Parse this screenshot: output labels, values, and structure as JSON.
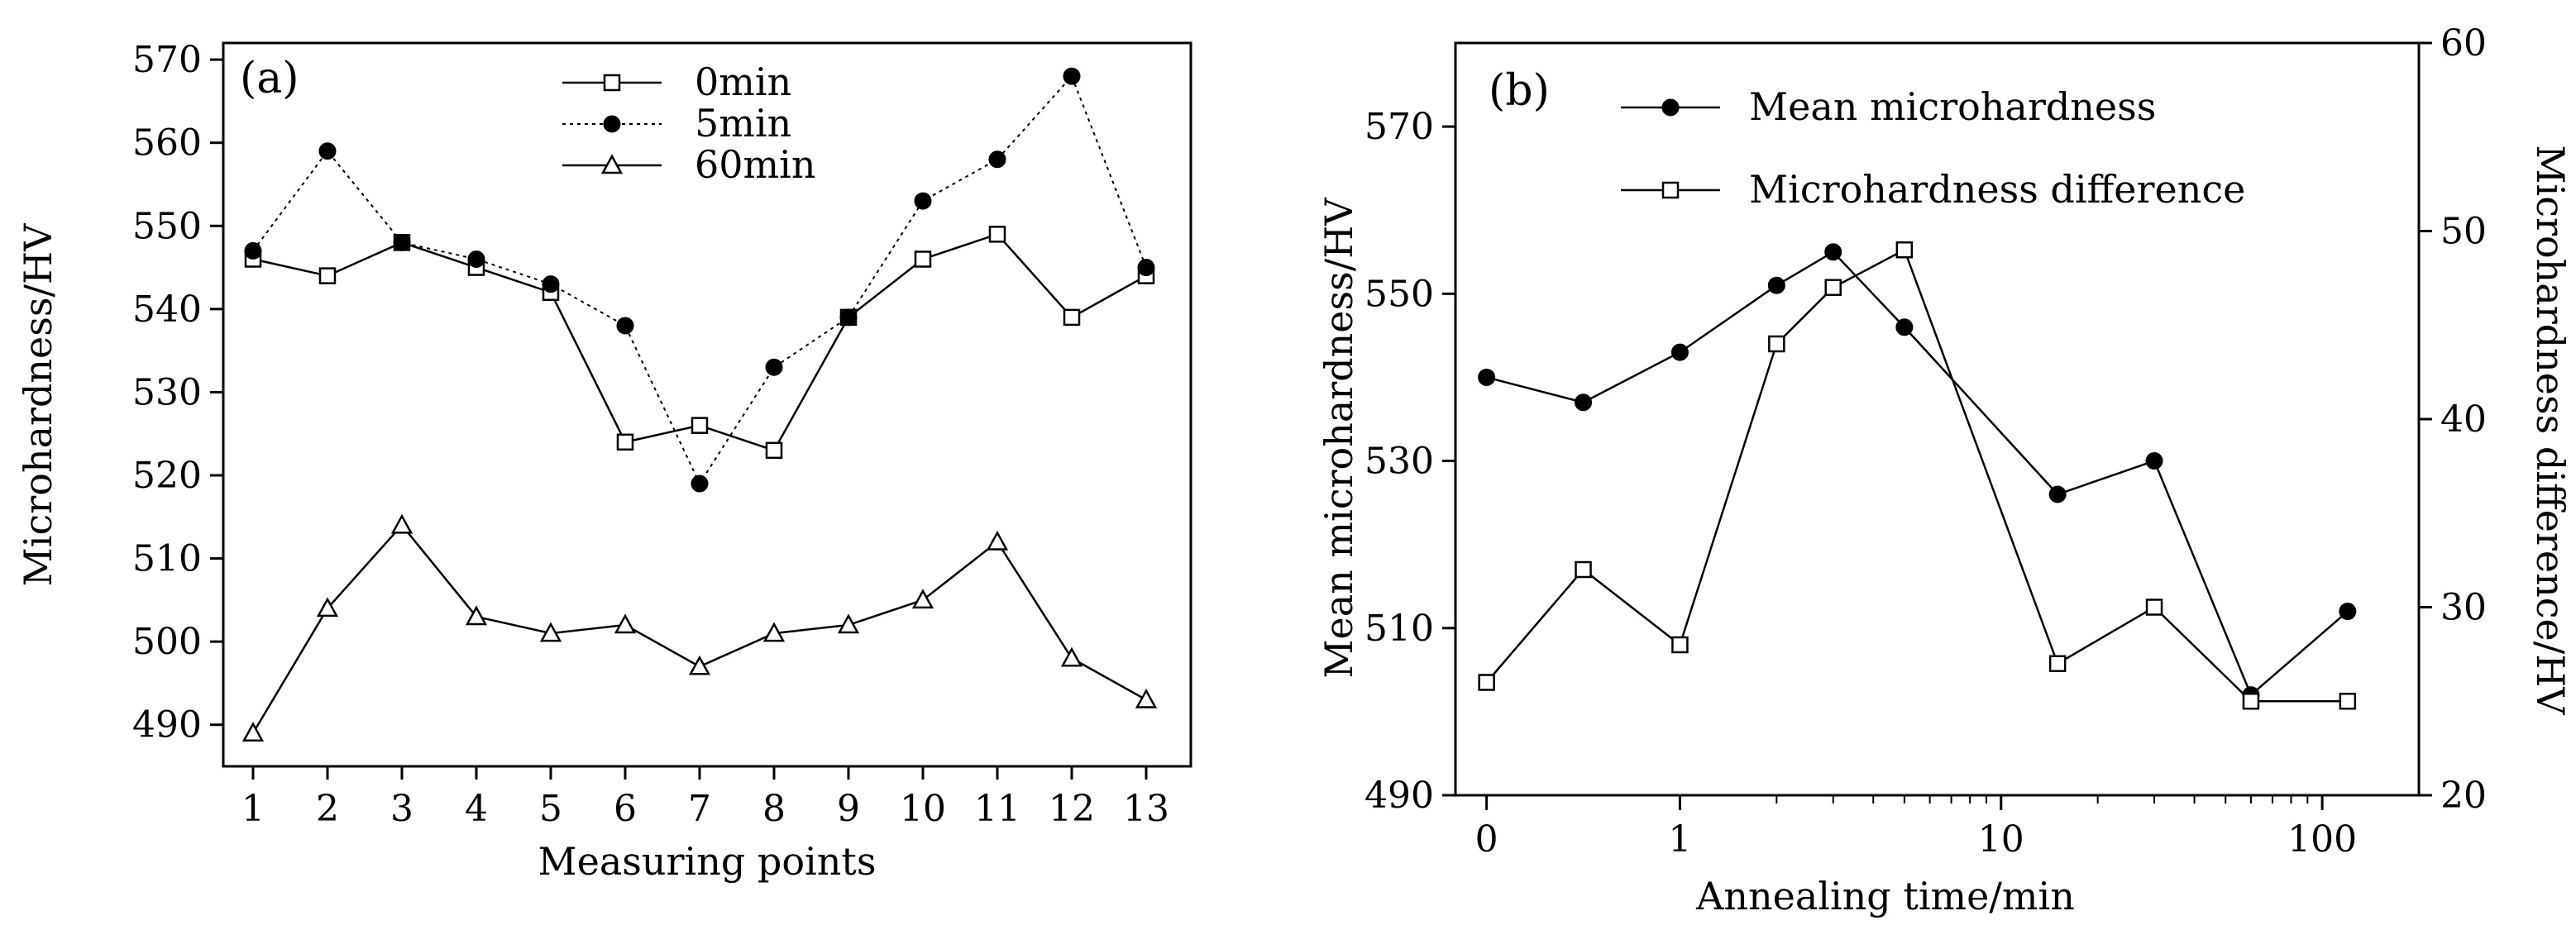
{
  "chart_data": [
    {
      "panel": "(a)",
      "type": "line",
      "xlabel": "Measuring points",
      "ylabel": "Microhardness/HV",
      "xlim": [
        0.6,
        13.6
      ],
      "ylim": [
        485,
        572
      ],
      "xticks": [
        "1",
        "2",
        "3",
        "4",
        "5",
        "6",
        "7",
        "8",
        "9",
        "10",
        "11",
        "12",
        "13"
      ],
      "yticks": [
        "490",
        "500",
        "510",
        "520",
        "530",
        "540",
        "550",
        "560",
        "570"
      ],
      "x": [
        1,
        2,
        3,
        4,
        5,
        6,
        7,
        8,
        9,
        10,
        11,
        12,
        13
      ],
      "series": [
        {
          "name": "0min",
          "marker": "open-square",
          "line": "solid",
          "values": [
            546,
            544,
            548,
            545,
            542,
            524,
            526,
            523,
            539,
            546,
            549,
            539,
            544
          ]
        },
        {
          "name": "5min",
          "marker": "filled-circle",
          "line": "dotted",
          "values": [
            547,
            559,
            548,
            546,
            543,
            538,
            519,
            533,
            539,
            553,
            558,
            568,
            545
          ]
        },
        {
          "name": "60min",
          "marker": "open-triangle",
          "line": "solid",
          "values": [
            489,
            504,
            514,
            503,
            501,
            502,
            497,
            501,
            502,
            505,
            512,
            498,
            493
          ]
        }
      ],
      "legend_position": "top-center"
    },
    {
      "panel": "(b)",
      "type": "line",
      "xlabel": "Annealing time/min",
      "ylabel_left": "Mean microhardness/HV",
      "ylabel_right": "Microhardness difference/HV",
      "xscale": "log",
      "xlim": [
        0.2,
        200
      ],
      "xticks": [
        "0",
        "1",
        "10",
        "100"
      ],
      "x_tick_values": [
        0.25,
        1,
        10,
        100
      ],
      "ylim_left": [
        490,
        580
      ],
      "yticks_left": [
        "490",
        "510",
        "530",
        "550",
        "570"
      ],
      "ylim_right": [
        20,
        60
      ],
      "yticks_right": [
        "20",
        "30",
        "40",
        "50",
        "60"
      ],
      "series": [
        {
          "name": "Mean microhardness",
          "axis": "left",
          "marker": "filled-circle",
          "x": [
            0.25,
            0.5,
            1,
            2,
            3,
            5,
            15,
            30,
            60,
            120
          ],
          "values": [
            540,
            537,
            543,
            551,
            555,
            546,
            526,
            530,
            502,
            512
          ]
        },
        {
          "name": "Microhardness difference",
          "axis": "right",
          "marker": "open-square",
          "x": [
            0.25,
            0.5,
            1,
            2,
            3,
            5,
            15,
            30,
            60,
            120
          ],
          "values": [
            26,
            32,
            28,
            44,
            47,
            49,
            27,
            30,
            25,
            25
          ]
        }
      ],
      "legend_position": "top-left"
    }
  ]
}
